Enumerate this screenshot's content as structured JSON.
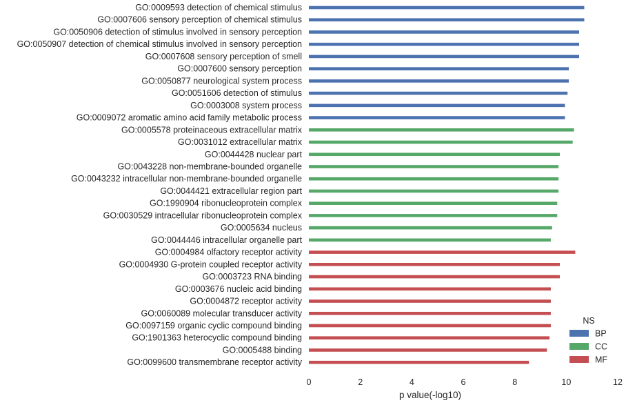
{
  "chart_data": {
    "type": "bar",
    "orientation": "horizontal",
    "xlabel": "p value(-log10)",
    "ylabel": "",
    "xlim": [
      0,
      12
    ],
    "xticks": [
      "0",
      "2",
      "4",
      "6",
      "8",
      "10",
      "12"
    ],
    "grid": false,
    "legend": {
      "title": "NS",
      "placement": "bottom-right",
      "entries": [
        {
          "name": "BP",
          "color": "#4c72b0"
        },
        {
          "name": "CC",
          "color": "#55a868"
        },
        {
          "name": "MF",
          "color": "#c44e52"
        }
      ]
    },
    "categories": [
      "GO:0009593 detection of chemical stimulus",
      "GO:0007606 sensory perception of chemical stimulus",
      "GO:0050906 detection of stimulus involved in sensory perception",
      "GO:0050907 detection of chemical stimulus involved in sensory perception",
      "GO:0007608 sensory perception of smell",
      "GO:0007600 sensory perception",
      "GO:0050877 neurological system process",
      "GO:0051606 detection of stimulus",
      "GO:0003008 system process",
      "GO:0009072 aromatic amino acid family metabolic process",
      "GO:0005578 proteinaceous extracellular matrix",
      "GO:0031012 extracellular matrix",
      "GO:0044428 nuclear part",
      "GO:0043228 non-membrane-bounded organelle",
      "GO:0043232 intracellular non-membrane-bounded organelle",
      "GO:0044421 extracellular region part",
      "GO:1990904 ribonucleoprotein complex",
      "GO:0030529 intracellular ribonucleoprotein complex",
      "GO:0005634 nucleus",
      "GO:0044446 intracellular organelle part",
      "GO:0004984 olfactory receptor activity",
      "GO:0004930 G-protein coupled receptor activity",
      "GO:0003723 RNA binding",
      "GO:0003676 nucleic acid binding",
      "GO:0004872 receptor activity",
      "GO:0060089 molecular transducer activity",
      "GO:0097159 organic cyclic compound binding",
      "GO:1901363 heterocyclic compound binding",
      "GO:0005488 binding",
      "GO:0099600 transmembrane receptor activity"
    ],
    "series": [
      {
        "name": "BP",
        "color": "#4c72b0",
        "values": [
          10.7,
          10.7,
          10.5,
          10.5,
          10.5,
          10.1,
          10.1,
          10.05,
          9.95,
          9.95,
          null,
          null,
          null,
          null,
          null,
          null,
          null,
          null,
          null,
          null,
          null,
          null,
          null,
          null,
          null,
          null,
          null,
          null,
          null,
          null
        ]
      },
      {
        "name": "CC",
        "color": "#55a868",
        "values": [
          null,
          null,
          null,
          null,
          null,
          null,
          null,
          null,
          null,
          null,
          10.3,
          10.25,
          9.75,
          9.7,
          9.7,
          9.7,
          9.65,
          9.65,
          9.45,
          9.4,
          null,
          null,
          null,
          null,
          null,
          null,
          null,
          null,
          null,
          null
        ]
      },
      {
        "name": "MF",
        "color": "#c44e52",
        "values": [
          null,
          null,
          null,
          null,
          null,
          null,
          null,
          null,
          null,
          null,
          null,
          null,
          null,
          null,
          null,
          null,
          null,
          null,
          null,
          null,
          10.35,
          9.75,
          9.75,
          9.4,
          9.4,
          9.4,
          9.4,
          9.35,
          9.25,
          8.55
        ]
      }
    ]
  }
}
